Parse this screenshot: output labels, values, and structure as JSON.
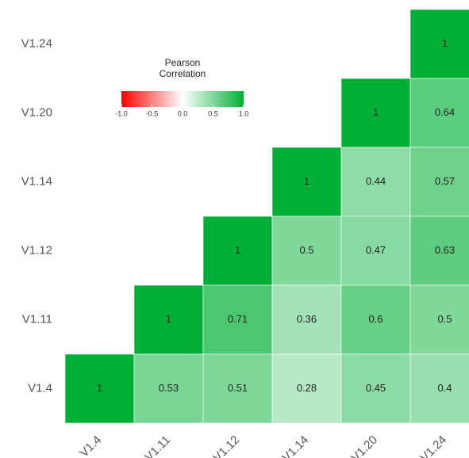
{
  "chart_data": {
    "type": "heatmap",
    "x_categories": [
      "V1.4",
      "V1.11",
      "V1.12",
      "V1.14",
      "V1.20",
      "V1.24"
    ],
    "y_categories": [
      "V1.24",
      "V1.20",
      "V1.14",
      "V1.12",
      "V1.11",
      "V1.4"
    ],
    "values": [
      [
        null,
        null,
        null,
        null,
        null,
        1
      ],
      [
        null,
        null,
        null,
        null,
        1,
        0.64
      ],
      [
        null,
        null,
        null,
        1,
        0.44,
        0.57
      ],
      [
        null,
        null,
        1,
        0.5,
        0.47,
        0.63
      ],
      [
        null,
        1,
        0.71,
        0.36,
        0.6,
        0.5
      ],
      [
        1,
        0.53,
        0.51,
        0.28,
        0.45,
        0.4
      ]
    ],
    "clim": [
      -1,
      1
    ],
    "colors": [
      "#ff0000",
      "#ffffff",
      "#00b036"
    ],
    "legend": {
      "title": [
        "Pearson",
        "Correlation"
      ],
      "ticks": [
        {
          "value": -1,
          "label": "-1.0"
        },
        -0.5,
        {
          "value": 0,
          "label": "0.0"
        },
        0.5,
        {
          "value": 1,
          "label": "1.0"
        }
      ]
    }
  }
}
